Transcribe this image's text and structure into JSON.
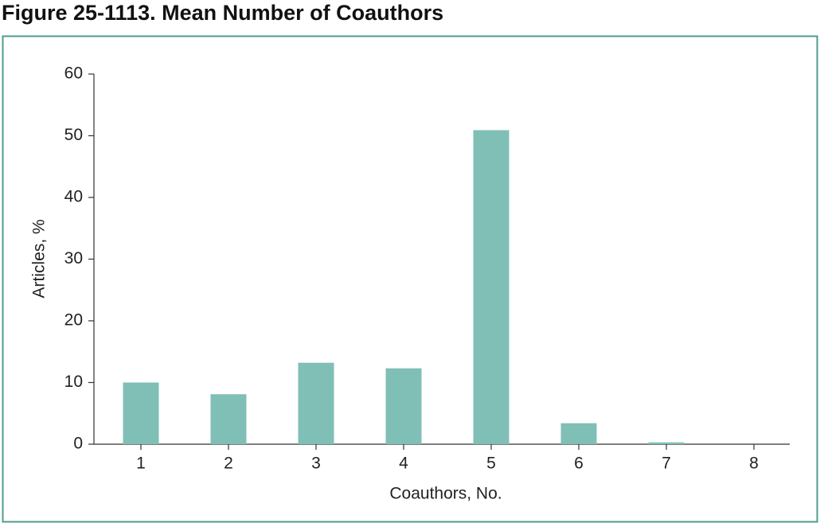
{
  "chart_data": {
    "type": "bar",
    "title": "Figure 25-1113. Mean Number of Coauthors",
    "x_label": "Coauthors, No.",
    "y_label": "Articles, %",
    "categories": [
      "1",
      "2",
      "3",
      "4",
      "5",
      "6",
      "7",
      "8"
    ],
    "values": [
      10,
      8.1,
      13.2,
      12.3,
      50.9,
      3.4,
      0.3,
      0
    ],
    "color": "#80bfb5",
    "ylim": [
      0,
      60
    ],
    "yticks": [
      0,
      10,
      20,
      30,
      40,
      50,
      60
    ],
    "grid": false
  }
}
